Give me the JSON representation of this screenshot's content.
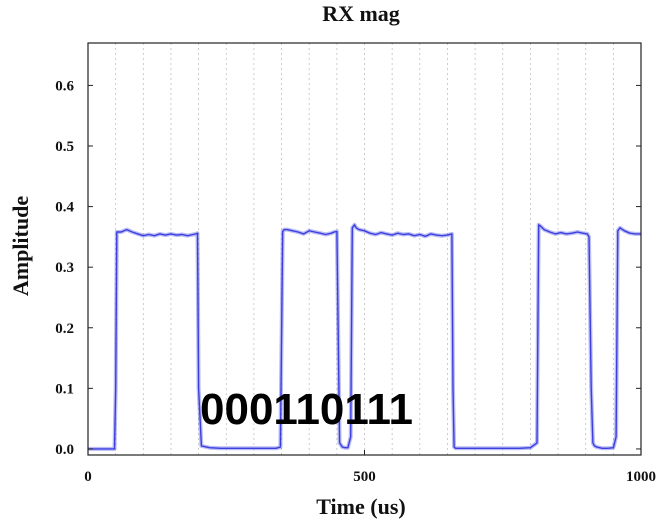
{
  "chart_data": {
    "type": "line",
    "title": "RX mag",
    "xlabel": "Time (us)",
    "ylabel": "Amplitude",
    "xlim": [
      0,
      1000
    ],
    "ylim": [
      -0.01,
      0.67
    ],
    "xticks": [
      0,
      500,
      1000
    ],
    "yticks": [
      0.0,
      0.1,
      0.2,
      0.3,
      0.4,
      0.5,
      0.6
    ],
    "ytick_labels": [
      "0.0",
      "0.1",
      "0.2",
      "0.3",
      "0.4",
      "0.5",
      "0.6"
    ],
    "xtick_labels": [
      "0",
      "500",
      "1000"
    ],
    "grid_x_lines": [
      50,
      100,
      150,
      200,
      250,
      300,
      350,
      400,
      450,
      500,
      550,
      600,
      650,
      700,
      750,
      800,
      850,
      900,
      950
    ],
    "grid": "vertical dashed",
    "annotation": "000110111",
    "series": [
      {
        "color": "#3b3fe0",
        "x": [
          0,
          48,
          50,
          52,
          55,
          60,
          70,
          80,
          90,
          100,
          110,
          120,
          130,
          140,
          150,
          160,
          170,
          180,
          190,
          195,
          198,
          200,
          205,
          220,
          240,
          260,
          280,
          300,
          320,
          340,
          348,
          352,
          355,
          360,
          370,
          380,
          390,
          400,
          410,
          420,
          430,
          440,
          445,
          450,
          455,
          460,
          465,
          470,
          475,
          478,
          482,
          485,
          490,
          500,
          510,
          520,
          530,
          540,
          550,
          560,
          570,
          580,
          590,
          600,
          610,
          620,
          630,
          640,
          650,
          658,
          660,
          662,
          665,
          680,
          700,
          720,
          740,
          760,
          780,
          800,
          812,
          815,
          818,
          825,
          835,
          845,
          855,
          865,
          875,
          885,
          895,
          903,
          906,
          910,
          913,
          916,
          920,
          930,
          940,
          950,
          955,
          958,
          962,
          970,
          980,
          990,
          1000
        ],
        "y": [
          0,
          0,
          0.1,
          0.358,
          0.358,
          0.358,
          0.362,
          0.358,
          0.355,
          0.352,
          0.354,
          0.352,
          0.355,
          0.353,
          0.355,
          0.353,
          0.354,
          0.352,
          0.354,
          0.355,
          0.356,
          0.1,
          0.005,
          0.002,
          0.001,
          0.001,
          0.001,
          0.001,
          0.001,
          0.001,
          0.003,
          0.359,
          0.362,
          0.362,
          0.36,
          0.358,
          0.355,
          0.36,
          0.358,
          0.356,
          0.354,
          0.356,
          0.358,
          0.359,
          0.01,
          0.003,
          0.002,
          0.002,
          0.02,
          0.365,
          0.37,
          0.365,
          0.362,
          0.36,
          0.356,
          0.354,
          0.357,
          0.355,
          0.353,
          0.356,
          0.354,
          0.355,
          0.352,
          0.354,
          0.351,
          0.355,
          0.353,
          0.352,
          0.353,
          0.355,
          0.1,
          0.003,
          0.001,
          0.001,
          0.001,
          0.001,
          0.001,
          0.001,
          0.001,
          0.002,
          0.01,
          0.37,
          0.368,
          0.362,
          0.358,
          0.355,
          0.357,
          0.355,
          0.356,
          0.358,
          0.356,
          0.355,
          0.35,
          0.1,
          0.01,
          0.005,
          0.003,
          0.001,
          0.001,
          0.002,
          0.02,
          0.36,
          0.365,
          0.36,
          0.356,
          0.355,
          0.355
        ]
      }
    ]
  }
}
